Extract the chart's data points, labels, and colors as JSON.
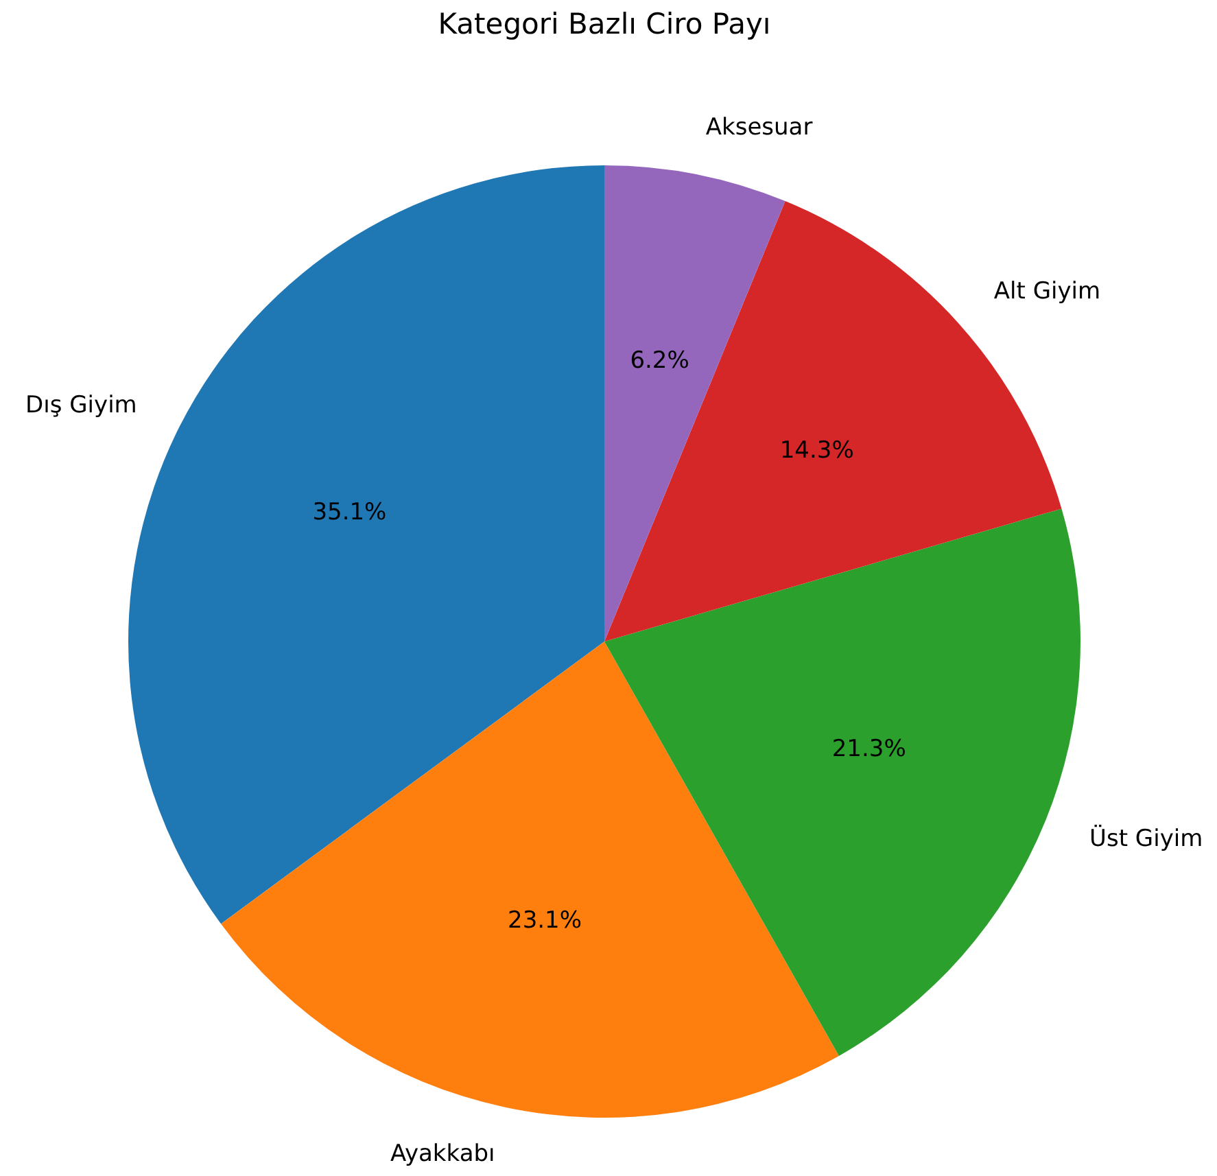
{
  "chart_data": {
    "type": "pie",
    "title": "Kategori Bazlı Ciro Payı",
    "categories": [
      "Dış Giyim",
      "Ayakkabı",
      "Üst Giyim",
      "Alt Giyim",
      "Aksesuar"
    ],
    "values": [
      35.1,
      23.1,
      21.3,
      14.3,
      6.2
    ],
    "colors": [
      "#1f77b4",
      "#ff7f0e",
      "#2ca02c",
      "#d62728",
      "#9467bd"
    ],
    "value_labels": [
      "35.1%",
      "23.1%",
      "21.3%",
      "14.3%",
      "6.2%"
    ]
  }
}
